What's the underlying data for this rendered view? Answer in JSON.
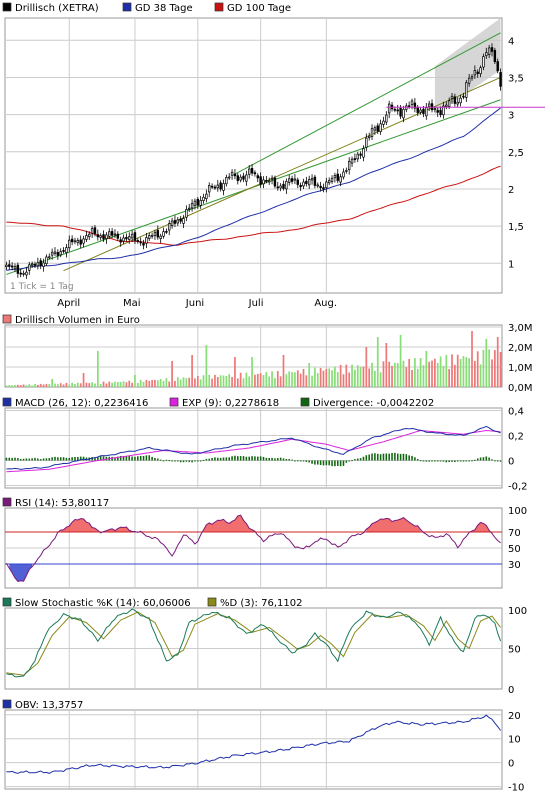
{
  "colors": {
    "price": "#000000",
    "up": "#339933",
    "down": "#cc3333",
    "gd38": "#1f2fa8",
    "gd100": "#cc1111",
    "channel": "#339933",
    "trend": "#7f7f1a",
    "hline": "#cc33cc",
    "vol_up": "#88dd77",
    "vol_down": "#ee7777",
    "macd": "#1f2fa8",
    "exp": "#dd22dd",
    "divergence": "#116611",
    "rsi": "#7a1a7a",
    "rsi_fill": "#ee5555",
    "rsi_oversold_fill": "#3344cc",
    "rsi70": "#cc2222",
    "rsi30": "#3344cc",
    "stoch_k": "#1a7a5a",
    "stoch_d": "#8a8a1a",
    "obv": "#1f2fa8",
    "grid": "#cccccc",
    "frame": "#999999"
  },
  "months": [
    "April",
    "Mai",
    "Juni",
    "Juli",
    "Aug."
  ],
  "chart_data": [
    {
      "type": "candlestick",
      "legend": [
        {
          "label": "Drillisch (XETRA)",
          "color": "#000000"
        },
        {
          "label": "GD 38 Tage",
          "color": "#1f2fa8"
        },
        {
          "label": "GD 100 Tage",
          "color": "#cc1111"
        }
      ],
      "tick_note": "1 Tick = 1 Tag",
      "y_ticks": [
        "1",
        "1,5",
        "2",
        "2,5",
        "3",
        "3,5",
        "4"
      ],
      "y_tick_values": [
        1,
        1.5,
        2,
        2.5,
        3,
        3.5,
        4
      ],
      "ylim": [
        0.6,
        4.3
      ],
      "close_anchors": [
        [
          0,
          0.95
        ],
        [
          6,
          0.88
        ],
        [
          10,
          0.98
        ],
        [
          16,
          1.1
        ],
        [
          22,
          1.25
        ],
        [
          30,
          1.4
        ],
        [
          40,
          1.35
        ],
        [
          48,
          1.3
        ],
        [
          56,
          1.45
        ],
        [
          62,
          1.65
        ],
        [
          70,
          1.95
        ],
        [
          78,
          2.15
        ],
        [
          86,
          2.2
        ],
        [
          94,
          2.05
        ],
        [
          102,
          2.1
        ],
        [
          112,
          2.05
        ],
        [
          120,
          2.3
        ],
        [
          128,
          2.75
        ],
        [
          134,
          3.05
        ],
        [
          142,
          3.1
        ],
        [
          150,
          3.05
        ],
        [
          158,
          3.2
        ],
        [
          164,
          3.55
        ],
        [
          168,
          3.85
        ],
        [
          171,
          3.75
        ],
        [
          173,
          3.45
        ]
      ],
      "gd38_anchors": [
        [
          0,
          0.9
        ],
        [
          20,
          1.0
        ],
        [
          40,
          1.08
        ],
        [
          60,
          1.25
        ],
        [
          80,
          1.55
        ],
        [
          100,
          1.85
        ],
        [
          120,
          2.1
        ],
        [
          140,
          2.4
        ],
        [
          160,
          2.7
        ],
        [
          173,
          3.1
        ]
      ],
      "gd100_anchors": [
        [
          0,
          1.55
        ],
        [
          20,
          1.5
        ],
        [
          40,
          1.3
        ],
        [
          60,
          1.25
        ],
        [
          80,
          1.35
        ],
        [
          100,
          1.45
        ],
        [
          120,
          1.6
        ],
        [
          140,
          1.85
        ],
        [
          160,
          2.1
        ],
        [
          173,
          2.3
        ]
      ],
      "channel_upper": [
        [
          80,
          2.2
        ],
        [
          173,
          4.1
        ]
      ],
      "channel_lower": [
        [
          0,
          0.85
        ],
        [
          173,
          3.2
        ]
      ],
      "trend_line": [
        [
          20,
          0.9
        ],
        [
          173,
          3.5
        ]
      ],
      "resistance": {
        "y": 3.1,
        "from": 133,
        "to": 173
      },
      "shaded_zone": {
        "from": 150,
        "upper": [
          [
            150,
            3.65
          ],
          [
            173,
            4.3
          ]
        ],
        "lower": [
          [
            150,
            3.0
          ],
          [
            173,
            3.6
          ]
        ]
      }
    },
    {
      "type": "bar",
      "legend": [
        {
          "label": "Drillisch Volumen in Euro",
          "color": "#ee7777"
        }
      ],
      "y_ticks": [
        "0,0M",
        "1,0M",
        "2,0M",
        "3,0M"
      ],
      "y_tick_values": [
        0,
        1,
        2,
        3
      ],
      "ylim": [
        0,
        3.1
      ],
      "volume_anchors": [
        [
          0,
          0.1
        ],
        [
          20,
          0.2
        ],
        [
          40,
          0.3
        ],
        [
          52,
          0.4
        ],
        [
          60,
          0.5
        ],
        [
          70,
          0.6
        ],
        [
          80,
          0.7
        ],
        [
          95,
          0.8
        ],
        [
          110,
          1.0
        ],
        [
          125,
          1.2
        ],
        [
          140,
          1.4
        ],
        [
          160,
          1.7
        ],
        [
          173,
          2.0
        ]
      ],
      "volume_spikes": [
        [
          16,
          0.4
        ],
        [
          27,
          0.7
        ],
        [
          32,
          1.8
        ],
        [
          45,
          0.6
        ],
        [
          58,
          1.3
        ],
        [
          65,
          1.6
        ],
        [
          70,
          2.1
        ],
        [
          80,
          1.5
        ],
        [
          86,
          1.5
        ],
        [
          97,
          1.6
        ],
        [
          106,
          1.2
        ],
        [
          117,
          1.1
        ],
        [
          126,
          2.0
        ],
        [
          130,
          2.5
        ],
        [
          133,
          2.2
        ],
        [
          138,
          2.6
        ],
        [
          147,
          1.8
        ],
        [
          159,
          1.4
        ],
        [
          163,
          2.8
        ],
        [
          168,
          2.4
        ],
        [
          172,
          2.5
        ]
      ]
    },
    {
      "type": "line",
      "legend": [
        {
          "label": "MACD (26, 12): 0,2236416",
          "color": "#1f2fa8"
        },
        {
          "label": "EXP (9): 0,2278618",
          "color": "#dd22dd"
        },
        {
          "label": "Divergence: -0,0042202",
          "color": "#116611"
        }
      ],
      "y_ticks": [
        "-0,2",
        "0",
        "0,2",
        "0,4"
      ],
      "y_tick_values": [
        -0.2,
        0,
        0.2,
        0.4
      ],
      "ylim": [
        -0.22,
        0.42
      ],
      "macd_anchors": [
        [
          0,
          -0.07
        ],
        [
          12,
          -0.06
        ],
        [
          30,
          0.02
        ],
        [
          50,
          0.1
        ],
        [
          65,
          0.05
        ],
        [
          80,
          0.12
        ],
        [
          100,
          0.18
        ],
        [
          110,
          0.1
        ],
        [
          118,
          0.05
        ],
        [
          128,
          0.18
        ],
        [
          140,
          0.26
        ],
        [
          150,
          0.22
        ],
        [
          160,
          0.2
        ],
        [
          168,
          0.27
        ],
        [
          173,
          0.22
        ]
      ],
      "exp_anchors": [
        [
          0,
          -0.09
        ],
        [
          15,
          -0.07
        ],
        [
          32,
          0.0
        ],
        [
          55,
          0.08
        ],
        [
          70,
          0.06
        ],
        [
          85,
          0.1
        ],
        [
          100,
          0.17
        ],
        [
          112,
          0.13
        ],
        [
          120,
          0.08
        ],
        [
          132,
          0.15
        ],
        [
          145,
          0.24
        ],
        [
          160,
          0.21
        ],
        [
          168,
          0.24
        ],
        [
          173,
          0.23
        ]
      ]
    },
    {
      "type": "line",
      "legend": [
        {
          "label": "RSI (14): 53,80117",
          "color": "#7a1a7a"
        }
      ],
      "y_ticks": [
        "30",
        "50",
        "70",
        "100"
      ],
      "y_tick_values": [
        30,
        50,
        70,
        100
      ],
      "ylim": [
        0,
        100
      ],
      "rsi_anchors": [
        [
          0,
          30
        ],
        [
          3,
          12
        ],
        [
          6,
          8
        ],
        [
          9,
          28
        ],
        [
          13,
          45
        ],
        [
          18,
          68
        ],
        [
          23,
          82
        ],
        [
          27,
          88
        ],
        [
          30,
          75
        ],
        [
          34,
          70
        ],
        [
          40,
          76
        ],
        [
          46,
          70
        ],
        [
          52,
          62
        ],
        [
          56,
          52
        ],
        [
          58,
          38
        ],
        [
          62,
          68
        ],
        [
          66,
          55
        ],
        [
          70,
          78
        ],
        [
          74,
          85
        ],
        [
          78,
          82
        ],
        [
          82,
          90
        ],
        [
          86,
          72
        ],
        [
          90,
          60
        ],
        [
          96,
          70
        ],
        [
          100,
          55
        ],
        [
          104,
          48
        ],
        [
          108,
          58
        ],
        [
          112,
          62
        ],
        [
          116,
          50
        ],
        [
          120,
          62
        ],
        [
          126,
          72
        ],
        [
          130,
          86
        ],
        [
          136,
          85
        ],
        [
          140,
          86
        ],
        [
          146,
          70
        ],
        [
          150,
          62
        ],
        [
          154,
          68
        ],
        [
          158,
          52
        ],
        [
          162,
          68
        ],
        [
          166,
          82
        ],
        [
          169,
          74
        ],
        [
          173,
          54
        ]
      ]
    },
    {
      "type": "line",
      "legend": [
        {
          "label": "Slow Stochastic %K (14): 60,06006",
          "color": "#1a7a5a"
        },
        {
          "label": "%D (3): 76,1102",
          "color": "#8a8a1a"
        }
      ],
      "y_ticks": [
        "0",
        "50",
        "100"
      ],
      "y_tick_values": [
        0,
        50,
        100
      ],
      "ylim": [
        0,
        100
      ],
      "k_anchors": [
        [
          0,
          18
        ],
        [
          6,
          15
        ],
        [
          10,
          35
        ],
        [
          14,
          70
        ],
        [
          20,
          92
        ],
        [
          26,
          85
        ],
        [
          32,
          60
        ],
        [
          38,
          88
        ],
        [
          44,
          98
        ],
        [
          50,
          86
        ],
        [
          56,
          35
        ],
        [
          60,
          42
        ],
        [
          64,
          82
        ],
        [
          72,
          95
        ],
        [
          78,
          88
        ],
        [
          84,
          68
        ],
        [
          90,
          80
        ],
        [
          96,
          58
        ],
        [
          100,
          45
        ],
        [
          104,
          52
        ],
        [
          108,
          68
        ],
        [
          112,
          55
        ],
        [
          116,
          35
        ],
        [
          120,
          72
        ],
        [
          126,
          95
        ],
        [
          132,
          88
        ],
        [
          138,
          95
        ],
        [
          144,
          80
        ],
        [
          148,
          55
        ],
        [
          152,
          88
        ],
        [
          156,
          62
        ],
        [
          160,
          45
        ],
        [
          164,
          88
        ],
        [
          168,
          92
        ],
        [
          171,
          80
        ],
        [
          173,
          60
        ]
      ],
      "d_anchors": [
        [
          0,
          20
        ],
        [
          6,
          17
        ],
        [
          11,
          32
        ],
        [
          16,
          66
        ],
        [
          22,
          89
        ],
        [
          28,
          82
        ],
        [
          34,
          62
        ],
        [
          40,
          85
        ],
        [
          46,
          95
        ],
        [
          52,
          82
        ],
        [
          58,
          40
        ],
        [
          62,
          48
        ],
        [
          66,
          80
        ],
        [
          74,
          93
        ],
        [
          80,
          85
        ],
        [
          86,
          70
        ],
        [
          92,
          76
        ],
        [
          98,
          60
        ],
        [
          102,
          49
        ],
        [
          106,
          54
        ],
        [
          110,
          66
        ],
        [
          114,
          55
        ],
        [
          118,
          40
        ],
        [
          122,
          70
        ],
        [
          128,
          92
        ],
        [
          134,
          88
        ],
        [
          140,
          92
        ],
        [
          146,
          78
        ],
        [
          150,
          60
        ],
        [
          154,
          84
        ],
        [
          158,
          62
        ],
        [
          162,
          50
        ],
        [
          166,
          84
        ],
        [
          170,
          90
        ],
        [
          173,
          76
        ]
      ]
    },
    {
      "type": "line",
      "legend": [
        {
          "label": "OBV: 13,3757",
          "color": "#1f2fa8"
        }
      ],
      "y_ticks": [
        "-10",
        "0",
        "10",
        "20"
      ],
      "y_tick_values": [
        -10,
        0,
        10,
        20
      ],
      "ylim": [
        -11,
        22
      ],
      "obv_anchors": [
        [
          0,
          -4
        ],
        [
          16,
          -4
        ],
        [
          30,
          -1
        ],
        [
          40,
          -1.5
        ],
        [
          55,
          -2
        ],
        [
          65,
          -0.5
        ],
        [
          80,
          3
        ],
        [
          95,
          5
        ],
        [
          110,
          8
        ],
        [
          120,
          9
        ],
        [
          130,
          15
        ],
        [
          136,
          17
        ],
        [
          145,
          16
        ],
        [
          160,
          17
        ],
        [
          168,
          19.5
        ],
        [
          171,
          17
        ],
        [
          173,
          13.4
        ]
      ]
    }
  ]
}
